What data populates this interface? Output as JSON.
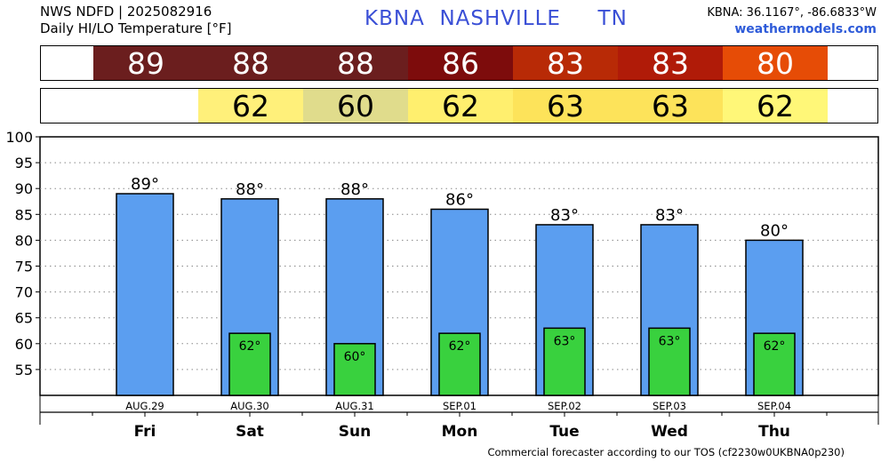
{
  "header": {
    "line1": "NWS NDFD | 2025082916",
    "line2": "Daily HI/LO Temperature [°F]",
    "station": "KBNA",
    "city": "NASHVILLE",
    "state": "TN",
    "coords": "KBNA: 36.1167°, -86.6833°W",
    "site": "weathermodels.com"
  },
  "strips": {
    "hi_colors": [
      "#6b1e1e",
      "#6b1e1e",
      "#6b1e1e",
      "#7d0c0c",
      "#b82a06",
      "#b01b08",
      "#e64c06"
    ],
    "lo_colors": [
      "#ffffff",
      "#fff07a",
      "#e0dc8c",
      "#ffef6e",
      "#fde35a",
      "#fde35a",
      "#fff778"
    ]
  },
  "colors": {
    "hi_bar": "#5b9ef0",
    "lo_bar": "#39d13e",
    "grid": "#888888"
  },
  "footer": "Commercial forecaster according to our TOS (cf2230w0UKBNA0p230)",
  "chart_data": {
    "type": "bar",
    "categories": [
      "AUG.29",
      "AUG.30",
      "AUG.31",
      "SEP.01",
      "SEP.02",
      "SEP.03",
      "SEP.04"
    ],
    "days": [
      "Fri",
      "Sat",
      "Sun",
      "Mon",
      "Tue",
      "Wed",
      "Thu"
    ],
    "series": [
      {
        "values": [
          89,
          88,
          88,
          86,
          83,
          83,
          80
        ]
      },
      {
        "values": [
          null,
          62,
          60,
          62,
          63,
          63,
          62
        ]
      }
    ],
    "hi_labels": [
      "89°",
      "88°",
      "88°",
      "86°",
      "83°",
      "83°",
      "80°"
    ],
    "lo_labels": [
      "",
      "62°",
      "60°",
      "62°",
      "63°",
      "63°",
      "62°"
    ],
    "ylim": [
      50,
      100
    ],
    "yticks": [
      55,
      60,
      65,
      70,
      75,
      80,
      85,
      90,
      95,
      100
    ],
    "grid": true,
    "xlabel": "",
    "ylabel": "",
    "title": ""
  }
}
